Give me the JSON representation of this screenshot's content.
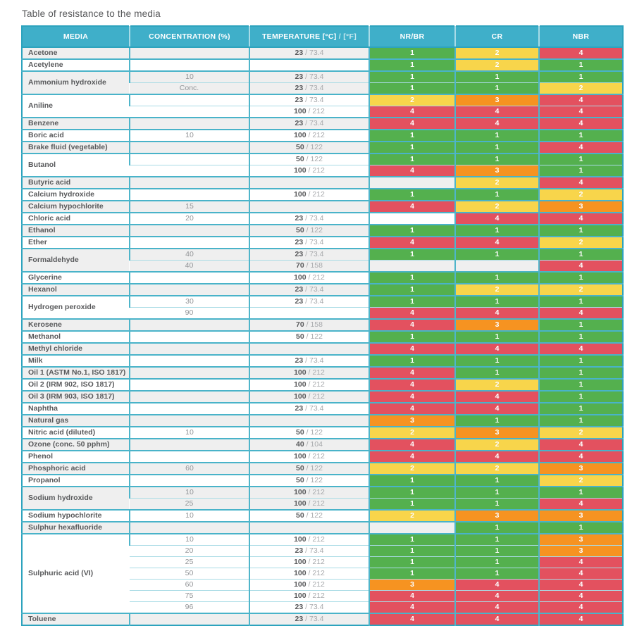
{
  "title": "Table of resistance to the media",
  "colors": {
    "accent_teal": "#3fafc9",
    "border_teal": "#49b3c9",
    "row_alt_gray": "#efefef",
    "rating_colors": {
      "1": "#54b04e",
      "2": "#f8d54b",
      "3": "#f69321",
      "4": "#e3515f"
    }
  },
  "table": {
    "columns": [
      {
        "label": "MEDIA"
      },
      {
        "label": "CONCENTRATION (%)"
      },
      {
        "label_main": "TEMPERATURE [°C]",
        "label_sub": " / [°F]"
      },
      {
        "label": "NR/BR"
      },
      {
        "label": "CR"
      },
      {
        "label": "NBR"
      }
    ],
    "groups": [
      {
        "media": "Acetone",
        "rows": [
          {
            "conc": "",
            "c": "23",
            "f": "73.4",
            "r": [
              1,
              2,
              4
            ]
          }
        ]
      },
      {
        "media": "Acetylene",
        "rows": [
          {
            "conc": "",
            "c": "",
            "f": "",
            "r": [
              1,
              2,
              1
            ]
          }
        ]
      },
      {
        "media": "Ammonium hydroxide",
        "rows": [
          {
            "conc": "10",
            "c": "23",
            "f": "73.4",
            "r": [
              1,
              1,
              1
            ]
          },
          {
            "conc": "Conc.",
            "c": "23",
            "f": "73.4",
            "r": [
              1,
              1,
              2
            ]
          }
        ]
      },
      {
        "media": "Aniline",
        "rows": [
          {
            "conc": "",
            "c": "23",
            "f": "73.4",
            "r": [
              2,
              3,
              4
            ]
          },
          {
            "conc": "",
            "c": "100",
            "f": "212",
            "r": [
              4,
              4,
              4
            ]
          }
        ]
      },
      {
        "media": "Benzene",
        "rows": [
          {
            "conc": "",
            "c": "23",
            "f": "73.4",
            "r": [
              4,
              4,
              4
            ]
          }
        ]
      },
      {
        "media": "Boric acid",
        "rows": [
          {
            "conc": "10",
            "c": "100",
            "f": "212",
            "r": [
              1,
              1,
              1
            ]
          }
        ]
      },
      {
        "media": "Brake fluid (vegetable)",
        "rows": [
          {
            "conc": "",
            "c": "50",
            "f": "122",
            "r": [
              1,
              1,
              4
            ]
          }
        ]
      },
      {
        "media": "Butanol",
        "rows": [
          {
            "conc": "",
            "c": "50",
            "f": "122",
            "r": [
              1,
              1,
              1
            ]
          },
          {
            "conc": "",
            "c": "100",
            "f": "212",
            "r": [
              4,
              3,
              1
            ]
          }
        ]
      },
      {
        "media": "Butyric acid",
        "rows": [
          {
            "conc": "",
            "c": "",
            "f": "",
            "r": [
              null,
              2,
              4
            ]
          }
        ]
      },
      {
        "media": "Calcium hydroxide",
        "rows": [
          {
            "conc": "",
            "c": "100",
            "f": "212",
            "r": [
              1,
              1,
              2
            ]
          }
        ]
      },
      {
        "media": "Calcium hypochlorite",
        "rows": [
          {
            "conc": "15",
            "c": "",
            "f": "",
            "r": [
              4,
              2,
              3
            ]
          }
        ]
      },
      {
        "media": "Chloric acid",
        "rows": [
          {
            "conc": "20",
            "c": "23",
            "f": "73.4",
            "r": [
              null,
              4,
              4
            ]
          }
        ]
      },
      {
        "media": "Ethanol",
        "rows": [
          {
            "conc": "",
            "c": "50",
            "f": "122",
            "r": [
              1,
              1,
              1
            ]
          }
        ]
      },
      {
        "media": "Ether",
        "rows": [
          {
            "conc": "",
            "c": "23",
            "f": "73.4",
            "r": [
              4,
              4,
              2
            ]
          }
        ]
      },
      {
        "media": "Formaldehyde",
        "rows": [
          {
            "conc": "40",
            "c": "23",
            "f": "73.4",
            "r": [
              1,
              1,
              1
            ]
          },
          {
            "conc": "40",
            "c": "70",
            "f": "158",
            "r": [
              null,
              null,
              4
            ]
          }
        ]
      },
      {
        "media": "Glycerine",
        "rows": [
          {
            "conc": "",
            "c": "100",
            "f": "212",
            "r": [
              1,
              1,
              1
            ]
          }
        ]
      },
      {
        "media": "Hexanol",
        "rows": [
          {
            "conc": "",
            "c": "23",
            "f": "73.4",
            "r": [
              1,
              2,
              2
            ]
          }
        ]
      },
      {
        "media": "Hydrogen peroxide",
        "rows": [
          {
            "conc": "30",
            "c": "23",
            "f": "73.4",
            "r": [
              1,
              1,
              1
            ]
          },
          {
            "conc": "90",
            "c": "",
            "f": "",
            "r": [
              4,
              4,
              4
            ]
          }
        ]
      },
      {
        "media": "Kerosene",
        "rows": [
          {
            "conc": "",
            "c": "70",
            "f": "158",
            "r": [
              4,
              3,
              1
            ]
          }
        ]
      },
      {
        "media": "Methanol",
        "rows": [
          {
            "conc": "",
            "c": "50",
            "f": "122",
            "r": [
              1,
              1,
              1
            ]
          }
        ]
      },
      {
        "media": "Methyl chloride",
        "rows": [
          {
            "conc": "",
            "c": "",
            "f": "",
            "r": [
              4,
              4,
              4
            ]
          }
        ]
      },
      {
        "media": "Milk",
        "rows": [
          {
            "conc": "",
            "c": "23",
            "f": "73.4",
            "r": [
              1,
              1,
              1
            ]
          }
        ]
      },
      {
        "media": "Oil 1 (ASTM No.1, ISO 1817)",
        "rows": [
          {
            "conc": "",
            "c": "100",
            "f": "212",
            "r": [
              4,
              1,
              1
            ]
          }
        ]
      },
      {
        "media": "Oil 2 (IRM 902, ISO 1817)",
        "rows": [
          {
            "conc": "",
            "c": "100",
            "f": "212",
            "r": [
              4,
              2,
              1
            ]
          }
        ]
      },
      {
        "media": "Oil 3 (IRM 903, ISO 1817)",
        "rows": [
          {
            "conc": "",
            "c": "100",
            "f": "212",
            "r": [
              4,
              4,
              1
            ]
          }
        ]
      },
      {
        "media": "Naphtha",
        "rows": [
          {
            "conc": "",
            "c": "23",
            "f": "73.4",
            "r": [
              4,
              4,
              1
            ]
          }
        ]
      },
      {
        "media": "Natural gas",
        "rows": [
          {
            "conc": "",
            "c": "",
            "f": "",
            "r": [
              3,
              1,
              1
            ]
          }
        ]
      },
      {
        "media": "Nitric acid (diluted)",
        "rows": [
          {
            "conc": "10",
            "c": "50",
            "f": "122",
            "r": [
              2,
              3,
              2
            ]
          }
        ]
      },
      {
        "media": "Ozone (conc. 50 pphm)",
        "rows": [
          {
            "conc": "",
            "c": "40",
            "f": "104",
            "r": [
              4,
              2,
              4
            ]
          }
        ]
      },
      {
        "media": "Phenol",
        "rows": [
          {
            "conc": "",
            "c": "100",
            "f": "212",
            "r": [
              4,
              4,
              4
            ]
          }
        ]
      },
      {
        "media": "Phosphoric acid",
        "rows": [
          {
            "conc": "60",
            "c": "50",
            "f": "122",
            "r": [
              2,
              2,
              3
            ]
          }
        ]
      },
      {
        "media": "Propanol",
        "rows": [
          {
            "conc": "",
            "c": "50",
            "f": "122",
            "r": [
              1,
              1,
              2
            ]
          }
        ]
      },
      {
        "media": "Sodium hydroxide",
        "rows": [
          {
            "conc": "10",
            "c": "100",
            "f": "212",
            "r": [
              1,
              1,
              1
            ]
          },
          {
            "conc": "25",
            "c": "100",
            "f": "212",
            "r": [
              1,
              1,
              4
            ]
          }
        ]
      },
      {
        "media": "Sodium hypochlorite",
        "rows": [
          {
            "conc": "10",
            "c": "50",
            "f": "122",
            "r": [
              2,
              3,
              3
            ]
          }
        ]
      },
      {
        "media": "Sulphur hexafluoride",
        "rows": [
          {
            "conc": "",
            "c": "",
            "f": "",
            "r": [
              null,
              1,
              1
            ]
          }
        ]
      },
      {
        "media": "Sulphuric acid (VI)",
        "rows": [
          {
            "conc": "10",
            "c": "100",
            "f": "212",
            "r": [
              1,
              1,
              3
            ]
          },
          {
            "conc": "20",
            "c": "23",
            "f": "73.4",
            "r": [
              1,
              1,
              3
            ]
          },
          {
            "conc": "25",
            "c": "100",
            "f": "212",
            "r": [
              1,
              1,
              4
            ]
          },
          {
            "conc": "50",
            "c": "100",
            "f": "212",
            "r": [
              1,
              1,
              4
            ]
          },
          {
            "conc": "60",
            "c": "100",
            "f": "212",
            "r": [
              3,
              4,
              4
            ]
          },
          {
            "conc": "75",
            "c": "100",
            "f": "212",
            "r": [
              4,
              4,
              4
            ]
          },
          {
            "conc": "96",
            "c": "23",
            "f": "73.4",
            "r": [
              4,
              4,
              4
            ]
          }
        ]
      },
      {
        "media": "Toluene",
        "rows": [
          {
            "conc": "",
            "c": "23",
            "f": "73.4",
            "r": [
              4,
              4,
              4
            ]
          }
        ]
      }
    ]
  }
}
